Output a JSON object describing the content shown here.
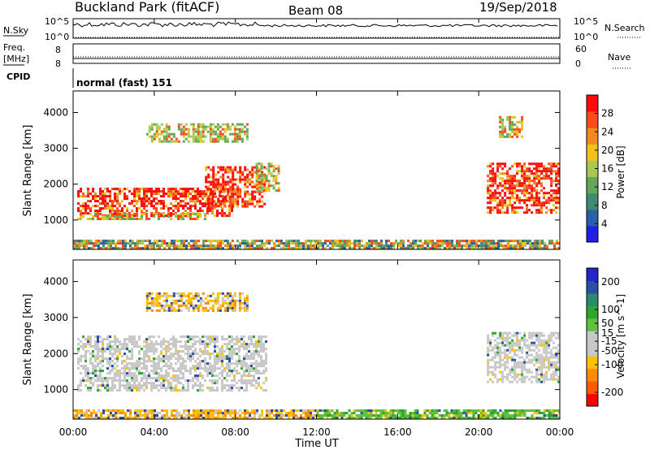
{
  "header": {
    "title": "Buckland Park (fitACF)",
    "beam": "Beam 08",
    "date": "19/Sep/2018"
  },
  "top_panels": {
    "nsky_label": "N.Sky",
    "nsearch_label": "N.Search",
    "nsky_ticks": [
      "10^5",
      "10^0"
    ],
    "nsearch_ticks": [
      "10^5",
      "10^0"
    ],
    "freq_label_lines": [
      "Freq.",
      "[MHz]"
    ],
    "freq_ticks": [
      "8",
      "8"
    ],
    "nave_label": "Nave",
    "nave_ticks": [
      "60",
      "0"
    ],
    "cpid_label": "CPID",
    "cpid_text": "normal (fast) 151"
  },
  "x_axis": {
    "label": "Time UT",
    "ticks": [
      "00:00",
      "04:00",
      "08:00",
      "12:00",
      "16:00",
      "20:00",
      "00:00"
    ]
  },
  "colors": {
    "power_scale": [
      "#1f1fe6",
      "#2b5fa8",
      "#3f8a72",
      "#61a85a",
      "#a8c850",
      "#f0c21e",
      "#f08a1e",
      "#ff4a1a",
      "#ff0a0a"
    ],
    "velocity_scale": [
      "#ff0000",
      "#ff5a00",
      "#ff8c00",
      "#ffc000",
      "#c8c8c8",
      "#c8c8c8",
      "#60c040",
      "#2ea52e",
      "#2a8a6a",
      "#2b4fa8",
      "#2424c8"
    ],
    "scatter_gray": "#c8c8c8"
  },
  "chart_data": [
    {
      "type": "heatmap",
      "title": "Power",
      "xlabel": "Time UT",
      "ylabel": "Slant Range [km]",
      "y_ticks": [
        1000,
        2000,
        3000,
        4000
      ],
      "ylim": [
        180,
        4600
      ],
      "xlim": [
        "00:00",
        "24:00"
      ],
      "colorbar": {
        "label": "Power [dB]",
        "ticks": [
          4,
          8,
          12,
          16,
          20,
          24,
          28
        ],
        "range": [
          0,
          32
        ]
      },
      "regions": [
        {
          "t": [
            0.2,
            7.8
          ],
          "r": [
            1150,
            1900
          ],
          "level": "high"
        },
        {
          "t": [
            0.2,
            6.5
          ],
          "r": [
            1000,
            1200
          ],
          "level": "mid"
        },
        {
          "t": [
            6.5,
            9.5
          ],
          "r": [
            1400,
            2500
          ],
          "level": "high"
        },
        {
          "t": [
            9.0,
            10.2
          ],
          "r": [
            1800,
            2600
          ],
          "level": "mid"
        },
        {
          "t": [
            3.6,
            8.6
          ],
          "r": [
            3200,
            3700
          ],
          "level": "low"
        },
        {
          "t": [
            20.4,
            23.9
          ],
          "r": [
            1200,
            2600
          ],
          "level": "high"
        },
        {
          "t": [
            21.0,
            22.2
          ],
          "r": [
            3300,
            3900
          ],
          "level": "mid"
        },
        {
          "t": [
            0.0,
            24.0
          ],
          "r": [
            200,
            450
          ],
          "level": "mixed"
        }
      ]
    },
    {
      "type": "heatmap",
      "title": "Velocity",
      "xlabel": "Time UT",
      "ylabel": "Slant Range [km]",
      "y_ticks": [
        1000,
        2000,
        3000,
        4000
      ],
      "ylim": [
        180,
        4600
      ],
      "xlim": [
        "00:00",
        "24:00"
      ],
      "colorbar": {
        "label": "Velocity [m s^-1]",
        "ticks": [
          200,
          100,
          50,
          15,
          -15,
          -50,
          -100,
          -200
        ],
        "range": [
          -250,
          250
        ]
      },
      "regions": [
        {
          "t": [
            0.2,
            9.5
          ],
          "r": [
            1000,
            2500
          ],
          "level": "near-zero"
        },
        {
          "t": [
            3.6,
            8.6
          ],
          "r": [
            3200,
            3700
          ],
          "level": "negative"
        },
        {
          "t": [
            20.4,
            23.9
          ],
          "r": [
            1200,
            2600
          ],
          "level": "near-zero"
        },
        {
          "t": [
            0.0,
            12.0
          ],
          "r": [
            200,
            450
          ],
          "level": "negative"
        },
        {
          "t": [
            12.0,
            24.0
          ],
          "r": [
            200,
            450
          ],
          "level": "positive"
        }
      ]
    }
  ]
}
